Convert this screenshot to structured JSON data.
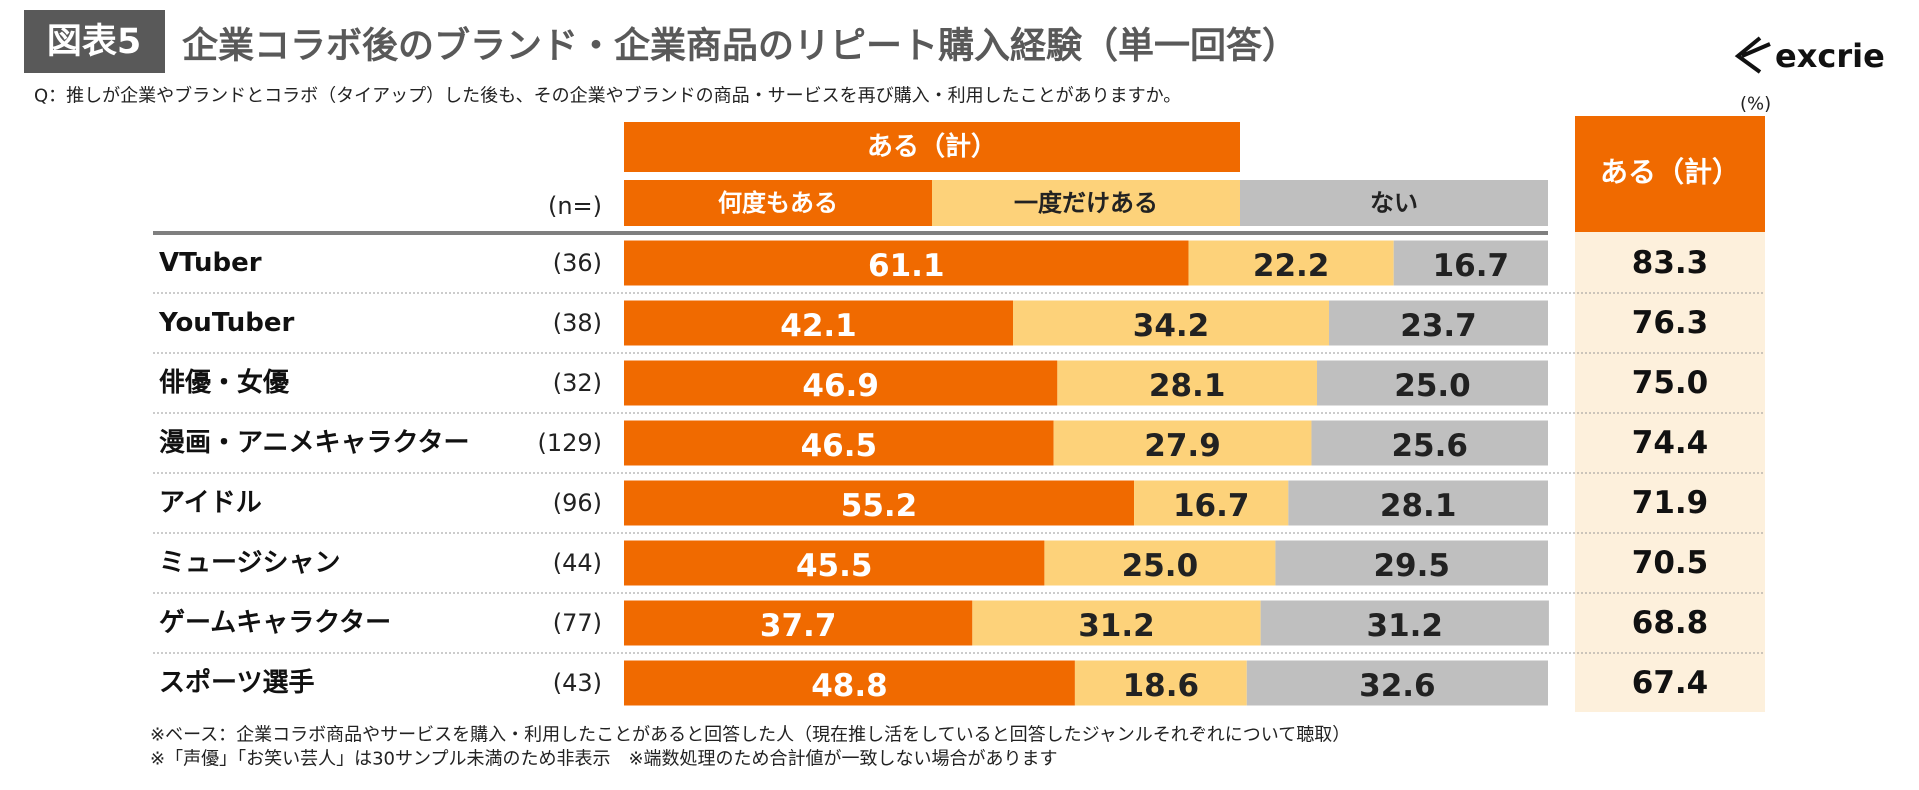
{
  "chart_data": {
    "type": "bar",
    "orientation": "horizontal",
    "stacked": true,
    "badge": "図表5",
    "title": "企業コラボ後のブランド・企業商品のリピート購入経験（単一回答）",
    "question": "Q：推しが企業やブランドとコラボ（タイアップ）した後も、その企業やブランドの商品・サービスを再び購入・利用したことがありますか。",
    "logo": "excrie",
    "unit": "(%)",
    "group_label": "ある（計）",
    "n_header": "(n=)",
    "categories": [
      "VTuber",
      "YouTuber",
      "俳優・女優",
      "漫画・アニメキャラクター",
      "アイドル",
      "ミュージシャン",
      "ゲームキャラクター",
      "スポーツ選手"
    ],
    "n": [
      {
        "value": 36,
        "label": "(36)"
      },
      {
        "value": 38,
        "label": "(38)"
      },
      {
        "value": 32,
        "label": "(32)"
      },
      {
        "value": 129,
        "label": "(129)"
      },
      {
        "value": 96,
        "label": "(96)"
      },
      {
        "value": 44,
        "label": "(44)"
      },
      {
        "value": 77,
        "label": "(77)"
      },
      {
        "value": 43,
        "label": "(43)"
      }
    ],
    "xlim": [
      0,
      100
    ],
    "series": [
      {
        "name": "何度もある",
        "color": "#f06a00",
        "text_color": "#ffffff",
        "values": [
          61.1,
          42.1,
          46.9,
          46.5,
          55.2,
          45.5,
          37.7,
          48.8
        ],
        "value_labels": [
          "61.1",
          "42.1",
          "46.9",
          "46.5",
          "55.2",
          "45.5",
          "37.7",
          "48.8"
        ]
      },
      {
        "name": "一度だけある",
        "color": "#fdd27a",
        "text_color": "#222222",
        "values": [
          22.2,
          34.2,
          28.1,
          27.9,
          16.7,
          25.0,
          31.2,
          18.6
        ],
        "value_labels": [
          "22.2",
          "34.2",
          "28.1",
          "27.9",
          "16.7",
          "25.0",
          "31.2",
          "18.6"
        ]
      },
      {
        "name": "ない",
        "color": "#bfbfbf",
        "text_color": "#222222",
        "values": [
          16.7,
          23.7,
          25.0,
          25.6,
          28.1,
          29.5,
          31.2,
          32.6
        ],
        "value_labels": [
          "16.7",
          "23.7",
          "25.0",
          "25.6",
          "28.1",
          "29.5",
          "31.2",
          "32.6"
        ]
      }
    ],
    "totals": {
      "values": [
        83.3,
        76.3,
        75.0,
        74.4,
        71.9,
        70.5,
        68.8,
        67.4
      ],
      "value_labels": [
        "83.3",
        "76.3",
        "75.0",
        "74.4",
        "71.9",
        "70.5",
        "68.8",
        "67.4"
      ]
    },
    "footnotes": [
      "※ベース：企業コラボ商品やサービスを購入・利用したことがあると回答した人（現在推し活をしていると回答したジャンルそれぞれについて聴取）",
      "※「声優」「お笑い芸人」は30サンプル未満のため非表示　※端数処理のため合計値が一致しない場合があります"
    ]
  }
}
